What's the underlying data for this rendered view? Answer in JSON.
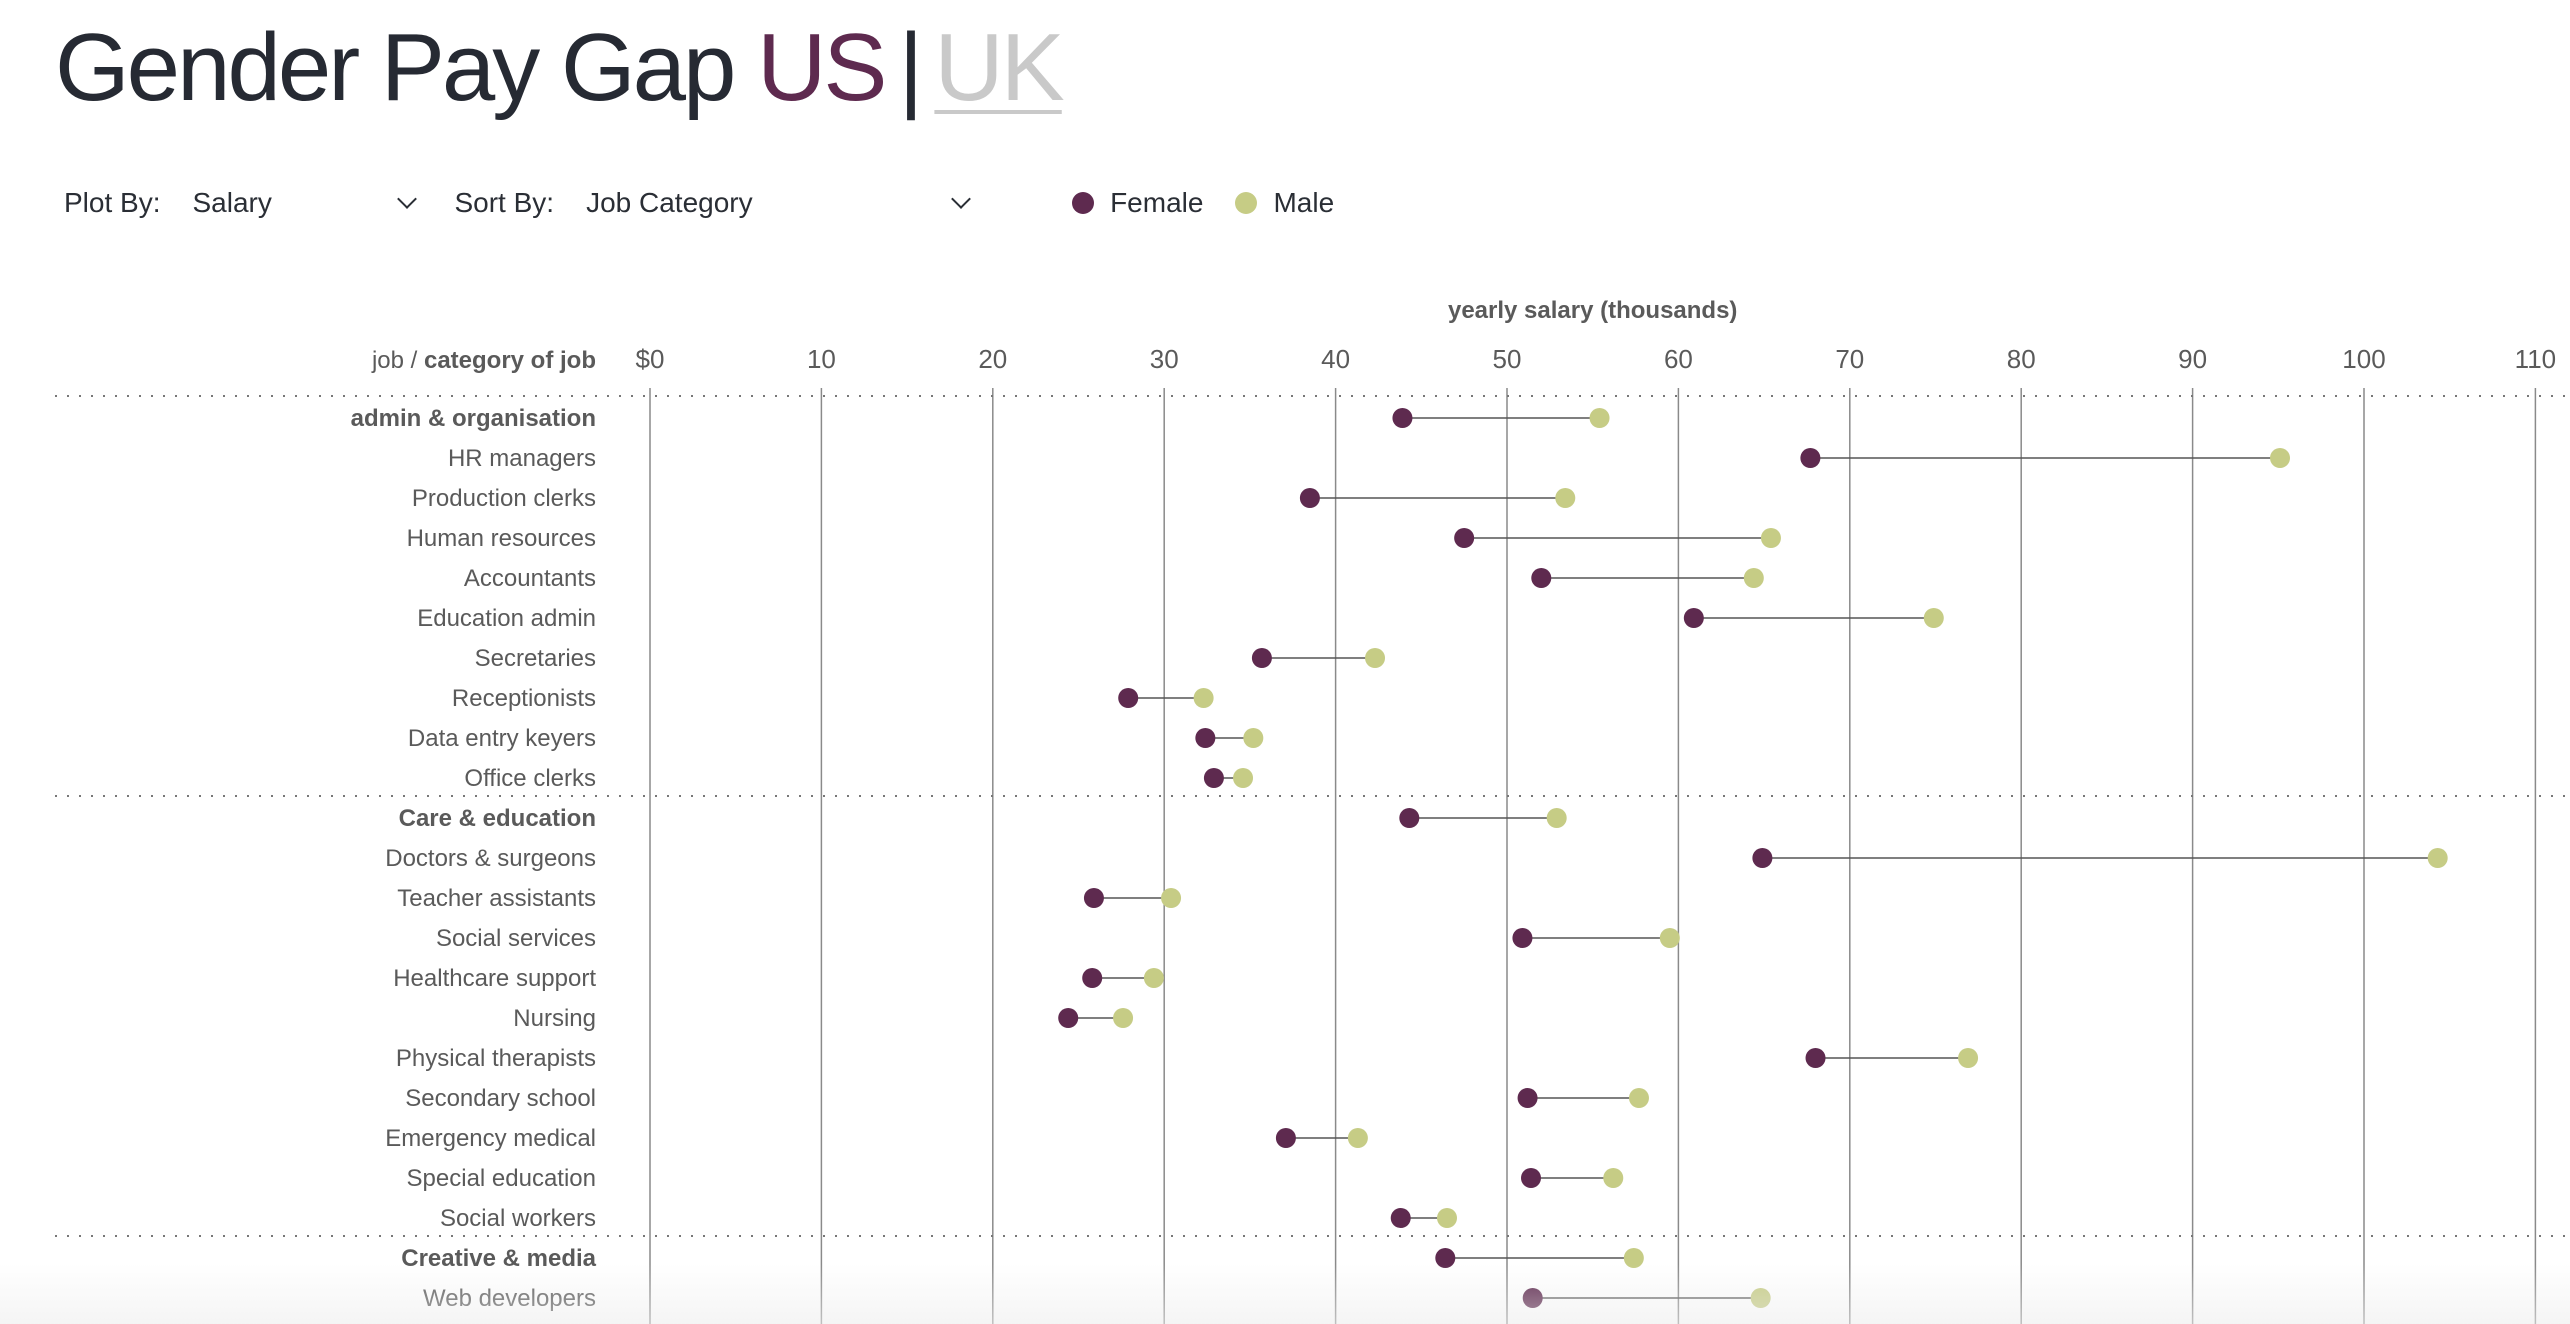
{
  "title": {
    "main": "Gender Pay Gap",
    "us": "US",
    "separator": "|",
    "uk": "UK"
  },
  "controls": {
    "plot_by_label": "Plot By:",
    "plot_by_value": "Salary",
    "sort_by_label": "Sort By:",
    "sort_by_value": "Job Category"
  },
  "legend": {
    "female": "Female",
    "male": "Male"
  },
  "colors": {
    "female": "#5e2a4f",
    "male": "#c6cc85",
    "gridline": "#8a8a8a",
    "connector": "#555555",
    "label_text": "#5a5a5a"
  },
  "chart_data": {
    "type": "dumbbell",
    "xlabel": "yearly salary (thousands)",
    "ylabel_prefix": "job /",
    "ylabel_bold": "category of job",
    "xlim": [
      0,
      110
    ],
    "xticks": [
      0,
      10,
      20,
      30,
      40,
      50,
      60,
      70,
      80,
      90,
      100,
      110
    ],
    "xtick_labels": [
      "$0",
      "10",
      "20",
      "30",
      "40",
      "50",
      "60",
      "70",
      "80",
      "90",
      "100",
      "110"
    ],
    "series": [
      {
        "name": "Female"
      },
      {
        "name": "Male"
      }
    ],
    "rows": [
      {
        "label": "admin & organisation",
        "category": true,
        "female": 43.9,
        "male": 55.4
      },
      {
        "label": "HR managers",
        "female": 67.7,
        "male": 95.1
      },
      {
        "label": "Production clerks",
        "female": 38.5,
        "male": 53.4
      },
      {
        "label": "Human resources",
        "female": 47.5,
        "male": 65.4
      },
      {
        "label": "Accountants",
        "female": 52.0,
        "male": 64.4
      },
      {
        "label": "Education admin",
        "female": 60.9,
        "male": 74.9
      },
      {
        "label": "Secretaries",
        "female": 35.7,
        "male": 42.3
      },
      {
        "label": "Receptionists",
        "female": 27.9,
        "male": 32.3
      },
      {
        "label": "Data entry keyers",
        "female": 32.4,
        "male": 35.2
      },
      {
        "label": "Office clerks",
        "female": 32.9,
        "male": 34.6
      },
      {
        "label": "Care & education",
        "category": true,
        "female": 44.3,
        "male": 52.9
      },
      {
        "label": "Doctors & surgeons",
        "female": 64.9,
        "male": 104.3
      },
      {
        "label": "Teacher assistants",
        "female": 25.9,
        "male": 30.4
      },
      {
        "label": "Social services",
        "female": 50.9,
        "male": 59.5
      },
      {
        "label": "Healthcare support",
        "female": 25.8,
        "male": 29.4
      },
      {
        "label": "Nursing",
        "female": 24.4,
        "male": 27.6
      },
      {
        "label": "Physical therapists",
        "female": 68.0,
        "male": 76.9
      },
      {
        "label": "Secondary school",
        "female": 51.2,
        "male": 57.7
      },
      {
        "label": "Emergency medical",
        "female": 37.1,
        "male": 41.3
      },
      {
        "label": "Special education",
        "female": 51.4,
        "male": 56.2
      },
      {
        "label": "Social workers",
        "female": 43.8,
        "male": 46.5
      },
      {
        "label": "Creative & media",
        "category": true,
        "female": 46.4,
        "male": 57.4
      },
      {
        "label": "Web developers",
        "female": 51.5,
        "male": 64.8
      }
    ]
  }
}
